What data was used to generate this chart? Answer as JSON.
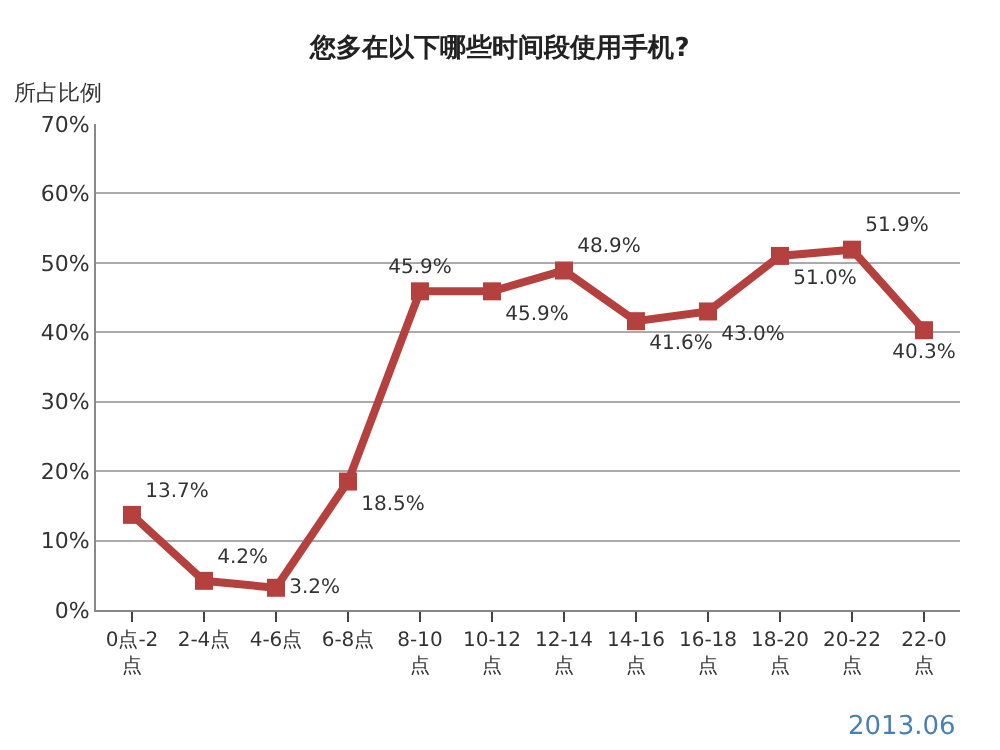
{
  "chart_data": {
    "type": "line",
    "title": "您多在以下哪些时间段使用手机?",
    "ylabel": "所占比例",
    "categories": [
      "0点-2点",
      "2-4点",
      "4-6点",
      "6-8点",
      "8-10点",
      "10-12点",
      "12-14点",
      "14-16点",
      "16-18点",
      "18-20点",
      "20-22点",
      "22-0点"
    ],
    "series": [
      {
        "color": "#b5413f",
        "values": [
          13.7,
          4.2,
          3.2,
          18.5,
          45.9,
          45.9,
          48.9,
          41.6,
          43.0,
          51.0,
          51.9,
          40.3
        ],
        "value_labels": [
          "13.7%",
          "4.2%",
          "3.2%",
          "18.5%",
          "45.9%",
          "45.9%",
          "48.9%",
          "41.6%",
          "43.0%",
          "51.0%",
          "51.9%",
          "40.3%"
        ]
      }
    ],
    "ylim": [
      0,
      70
    ],
    "yticks": [
      {
        "value": 0,
        "label": "0%"
      },
      {
        "value": 10,
        "label": "10%"
      },
      {
        "value": 20,
        "label": "20%"
      },
      {
        "value": 30,
        "label": "30%"
      },
      {
        "value": 40,
        "label": "40%"
      },
      {
        "value": 50,
        "label": "50%"
      },
      {
        "value": 60,
        "label": "60%"
      },
      {
        "value": 70,
        "label": "70%"
      }
    ],
    "grid": "y",
    "marker": "square",
    "line_style": "solid",
    "legend": false,
    "annotations": [
      "2013.06"
    ]
  }
}
